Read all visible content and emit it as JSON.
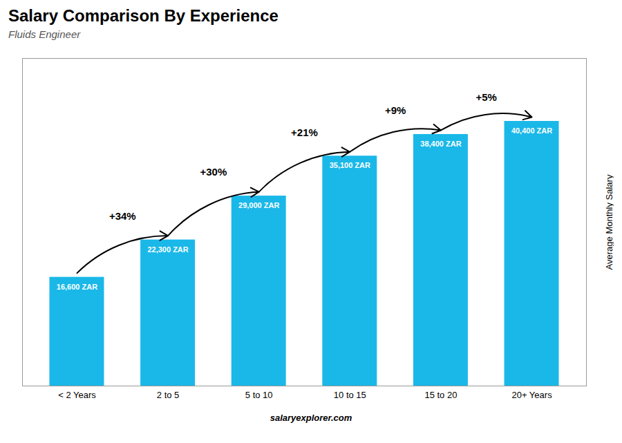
{
  "chart_data": {
    "type": "bar",
    "title": "Salary Comparison By Experience",
    "subtitle": "Fluids Engineer",
    "ylabel": "Average Monthly Salary",
    "caption": "salaryexplorer.com",
    "categories": [
      "< 2 Years",
      "2 to 5",
      "5 to 10",
      "10 to 15",
      "15 to 20",
      "20+ Years"
    ],
    "values": [
      16600,
      22300,
      29000,
      35100,
      38400,
      40400
    ],
    "value_labels": [
      "16,600 ZAR",
      "22,300 ZAR",
      "29,000 ZAR",
      "35,100 ZAR",
      "38,400 ZAR",
      "40,400 ZAR"
    ],
    "data_labels": true,
    "annotations": [
      "+34%",
      "+30%",
      "+21%",
      "+9%",
      "+5%"
    ],
    "color": "#1ab8e8",
    "ylim": [
      0,
      50000
    ],
    "tick_labels": "x",
    "grid": false
  }
}
